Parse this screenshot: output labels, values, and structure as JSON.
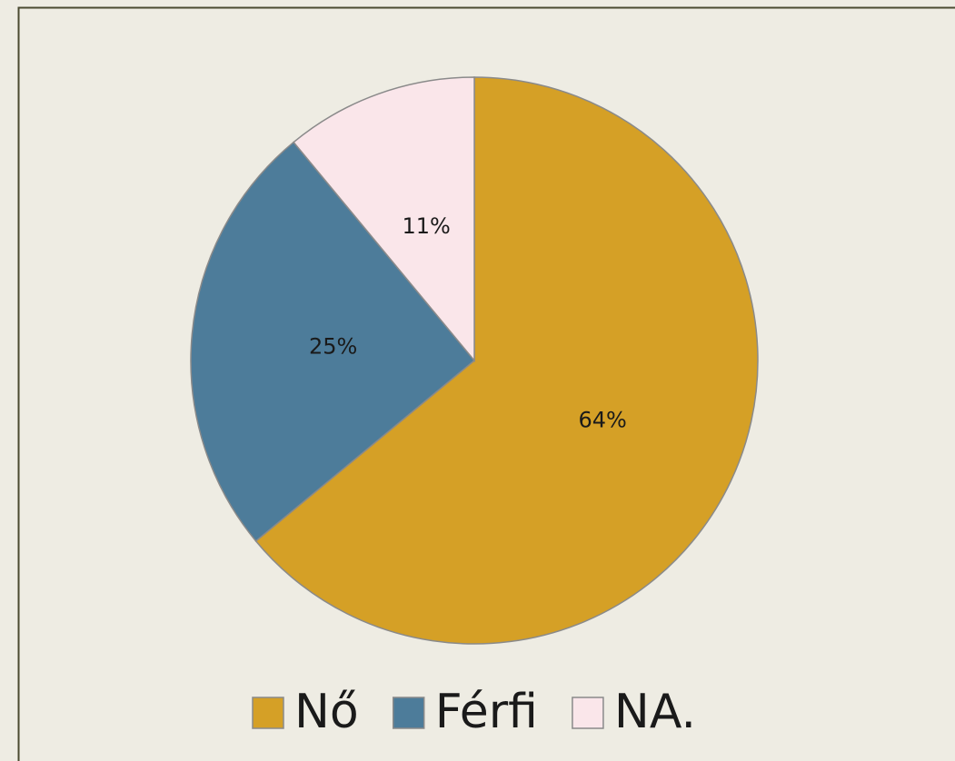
{
  "chart_data": {
    "type": "pie",
    "categories": [
      "Nő",
      "Férfi",
      "NA."
    ],
    "values": [
      64,
      25,
      11
    ],
    "value_labels": [
      "64%",
      "25%",
      "11%"
    ],
    "colors": [
      "#D5A026",
      "#4D7C9A",
      "#FAE6EA"
    ],
    "legend": "bottom"
  }
}
